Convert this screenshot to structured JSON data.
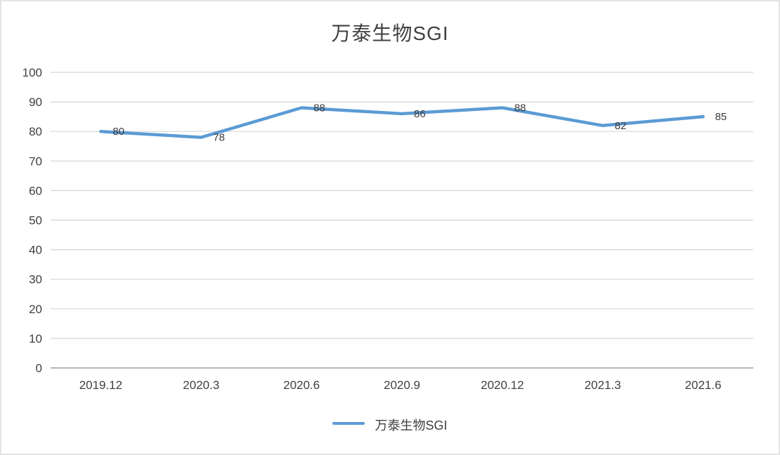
{
  "title": "万泰生物SGI",
  "legend": {
    "label": "万泰生物SGI"
  },
  "colors": {
    "line": "#5b9bd5",
    "grid": "#d6d6d6",
    "axis": "#9e9e9e",
    "text": "#404040",
    "data_label": "#3b3b3b"
  },
  "chart_data": {
    "type": "line",
    "title": "万泰生物SGI",
    "categories": [
      "2019.12",
      "2020.3",
      "2020.6",
      "2020.9",
      "2020.12",
      "2021.3",
      "2021.6"
    ],
    "series": [
      {
        "name": "万泰生物SGI",
        "values": [
          80,
          78,
          88,
          86,
          88,
          82,
          85
        ]
      }
    ],
    "xlabel": "",
    "ylabel": "",
    "ylim": [
      0,
      100
    ],
    "ytick_step": 10,
    "grid": true,
    "legend_position": "bottom",
    "data_labels": true
  }
}
